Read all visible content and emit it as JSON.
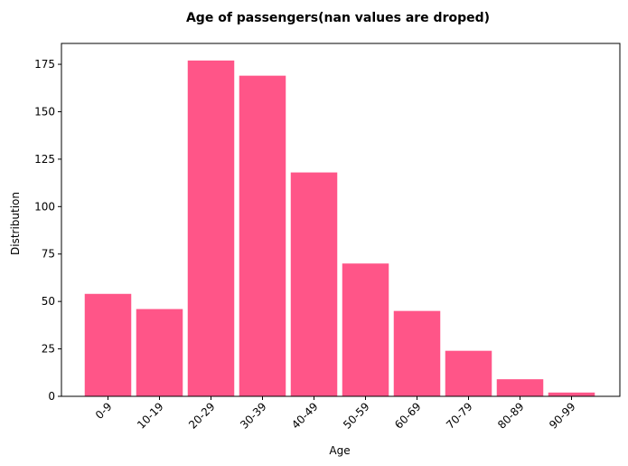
{
  "chart_data": {
    "type": "bar",
    "title": "Age of passengers(nan values are droped)",
    "xlabel": "Age",
    "ylabel": "Distribution",
    "categories": [
      "0-9",
      "10-19",
      "20-29",
      "30-39",
      "40-49",
      "50-59",
      "60-69",
      "70-79",
      "80-89",
      "90-99"
    ],
    "values": [
      54,
      46,
      177,
      169,
      118,
      70,
      45,
      24,
      9,
      2
    ],
    "ylim": [
      0,
      186
    ],
    "yticks": [
      "0",
      "25",
      "50",
      "75",
      "100",
      "125",
      "150",
      "175"
    ],
    "x_tick_rotation": 45,
    "grid": false,
    "bar_color": "#ff5588"
  }
}
